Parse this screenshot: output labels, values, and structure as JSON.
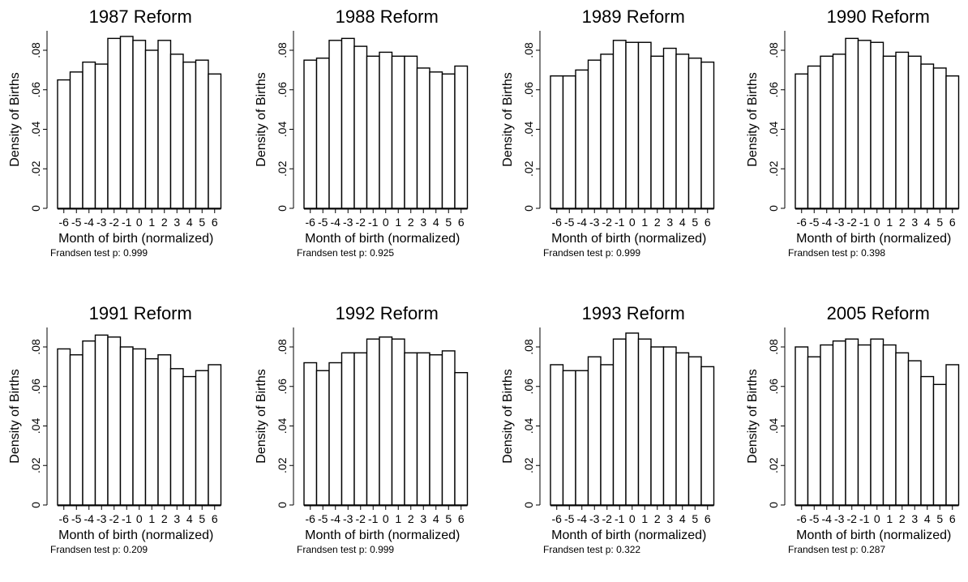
{
  "chart_data": [
    {
      "type": "bar",
      "title": "1987 Reform",
      "xlabel": "Month of birth (normalized)",
      "ylabel": "Density of Births",
      "categories": [
        "-6",
        "-5",
        "-4",
        "-3",
        "-2",
        "-1",
        "0",
        "1",
        "2",
        "3",
        "4",
        "5",
        "6"
      ],
      "values": [
        0.065,
        0.069,
        0.074,
        0.073,
        0.086,
        0.087,
        0.085,
        0.08,
        0.085,
        0.078,
        0.074,
        0.075,
        0.068
      ],
      "ylim": [
        0,
        0.09
      ],
      "yticks": [
        0,
        0.02,
        0.04,
        0.06,
        0.08
      ],
      "ytick_labels": [
        "0",
        ".02",
        ".04",
        ".06",
        ".08"
      ],
      "note_label": "Frandsen test p:",
      "p_value": "0.999"
    },
    {
      "type": "bar",
      "title": "1988 Reform",
      "xlabel": "Month of birth (normalized)",
      "ylabel": "Density of Births",
      "categories": [
        "-6",
        "-5",
        "-4",
        "-3",
        "-2",
        "-1",
        "0",
        "1",
        "2",
        "3",
        "4",
        "5",
        "6"
      ],
      "values": [
        0.075,
        0.076,
        0.085,
        0.086,
        0.082,
        0.077,
        0.079,
        0.077,
        0.077,
        0.071,
        0.069,
        0.068,
        0.072
      ],
      "ylim": [
        0,
        0.09
      ],
      "yticks": [
        0,
        0.02,
        0.04,
        0.06,
        0.08
      ],
      "ytick_labels": [
        "0",
        ".02",
        ".04",
        ".06",
        ".08"
      ],
      "note_label": "Frandsen test p:",
      "p_value": "0.925"
    },
    {
      "type": "bar",
      "title": "1989 Reform",
      "xlabel": "Month of birth (normalized)",
      "ylabel": "Density of Births",
      "categories": [
        "-6",
        "-5",
        "-4",
        "-3",
        "-2",
        "-1",
        "0",
        "1",
        "2",
        "3",
        "4",
        "5",
        "6"
      ],
      "values": [
        0.067,
        0.067,
        0.07,
        0.075,
        0.078,
        0.085,
        0.084,
        0.084,
        0.077,
        0.081,
        0.078,
        0.076,
        0.074
      ],
      "ylim": [
        0,
        0.09
      ],
      "yticks": [
        0,
        0.02,
        0.04,
        0.06,
        0.08
      ],
      "ytick_labels": [
        "0",
        ".02",
        ".04",
        ".06",
        ".08"
      ],
      "note_label": "Frandsen test p:",
      "p_value": "0.999"
    },
    {
      "type": "bar",
      "title": "1990 Reform",
      "xlabel": "Month of birth (normalized)",
      "ylabel": "Density of Births",
      "categories": [
        "-6",
        "-5",
        "-4",
        "-3",
        "-2",
        "-1",
        "0",
        "1",
        "2",
        "3",
        "4",
        "5",
        "6"
      ],
      "values": [
        0.068,
        0.072,
        0.077,
        0.078,
        0.086,
        0.085,
        0.084,
        0.077,
        0.079,
        0.077,
        0.073,
        0.071,
        0.067
      ],
      "ylim": [
        0,
        0.09
      ],
      "yticks": [
        0,
        0.02,
        0.04,
        0.06,
        0.08
      ],
      "ytick_labels": [
        "0",
        ".02",
        ".04",
        ".06",
        ".08"
      ],
      "note_label": "Frandsen test p:",
      "p_value": "0.398"
    },
    {
      "type": "bar",
      "title": "1991 Reform",
      "xlabel": "Month of birth (normalized)",
      "ylabel": "Density of Births",
      "categories": [
        "-6",
        "-5",
        "-4",
        "-3",
        "-2",
        "-1",
        "0",
        "1",
        "2",
        "3",
        "4",
        "5",
        "6"
      ],
      "values": [
        0.079,
        0.076,
        0.083,
        0.086,
        0.085,
        0.08,
        0.079,
        0.074,
        0.076,
        0.069,
        0.065,
        0.068,
        0.071
      ],
      "ylim": [
        0,
        0.09
      ],
      "yticks": [
        0,
        0.02,
        0.04,
        0.06,
        0.08
      ],
      "ytick_labels": [
        "0",
        ".02",
        ".04",
        ".06",
        ".08"
      ],
      "note_label": "Frandsen test p:",
      "p_value": "0.209"
    },
    {
      "type": "bar",
      "title": "1992 Reform",
      "xlabel": "Month of birth (normalized)",
      "ylabel": "Density of Births",
      "categories": [
        "-6",
        "-5",
        "-4",
        "-3",
        "-2",
        "-1",
        "0",
        "1",
        "2",
        "3",
        "4",
        "5",
        "6"
      ],
      "values": [
        0.072,
        0.068,
        0.072,
        0.077,
        0.077,
        0.084,
        0.085,
        0.084,
        0.077,
        0.077,
        0.076,
        0.078,
        0.067
      ],
      "ylim": [
        0,
        0.09
      ],
      "yticks": [
        0,
        0.02,
        0.04,
        0.06,
        0.08
      ],
      "ytick_labels": [
        "0",
        ".02",
        ".04",
        ".06",
        ".08"
      ],
      "note_label": "Frandsen test p:",
      "p_value": "0.999"
    },
    {
      "type": "bar",
      "title": "1993 Reform",
      "xlabel": "Month of birth (normalized)",
      "ylabel": "Density of Births",
      "categories": [
        "-6",
        "-5",
        "-4",
        "-3",
        "-2",
        "-1",
        "0",
        "1",
        "2",
        "3",
        "4",
        "5",
        "6"
      ],
      "values": [
        0.071,
        0.068,
        0.068,
        0.075,
        0.071,
        0.084,
        0.087,
        0.084,
        0.08,
        0.08,
        0.077,
        0.075,
        0.07
      ],
      "ylim": [
        0,
        0.09
      ],
      "yticks": [
        0,
        0.02,
        0.04,
        0.06,
        0.08
      ],
      "ytick_labels": [
        "0",
        ".02",
        ".04",
        ".06",
        ".08"
      ],
      "note_label": "Frandsen test p:",
      "p_value": "0.322"
    },
    {
      "type": "bar",
      "title": "2005 Reform",
      "xlabel": "Month of birth (normalized)",
      "ylabel": "Density of Births",
      "categories": [
        "-6",
        "-5",
        "-4",
        "-3",
        "-2",
        "-1",
        "0",
        "1",
        "2",
        "3",
        "4",
        "5",
        "6"
      ],
      "values": [
        0.08,
        0.075,
        0.081,
        0.083,
        0.084,
        0.081,
        0.084,
        0.081,
        0.077,
        0.073,
        0.065,
        0.061,
        0.071
      ],
      "ylim": [
        0,
        0.09
      ],
      "yticks": [
        0,
        0.02,
        0.04,
        0.06,
        0.08
      ],
      "ytick_labels": [
        "0",
        ".02",
        ".04",
        ".06",
        ".08"
      ],
      "note_label": "Frandsen test p:",
      "p_value": "0.287"
    }
  ]
}
